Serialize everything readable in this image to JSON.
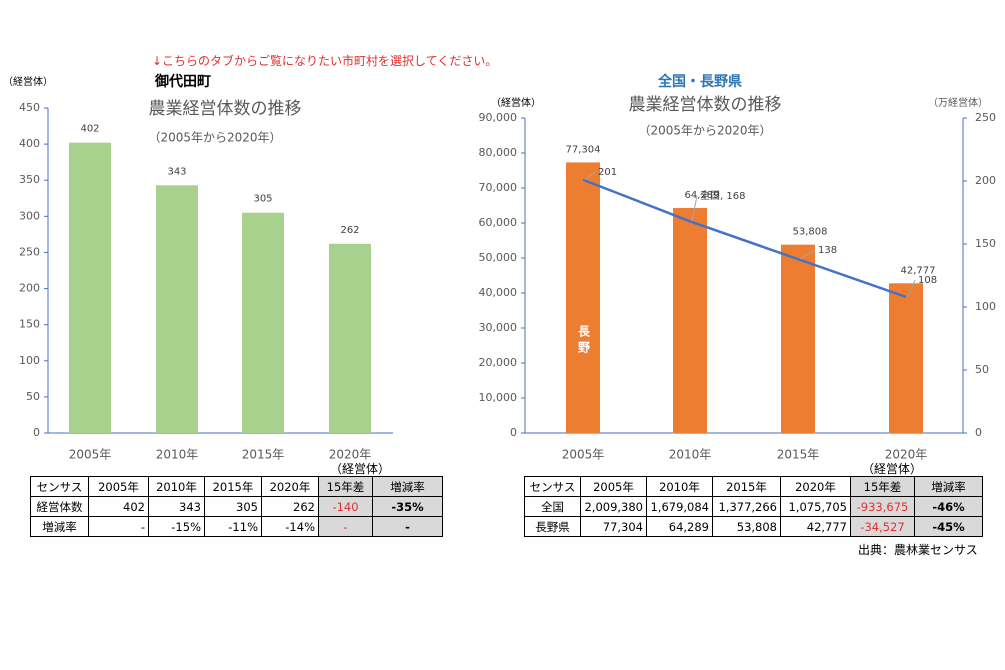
{
  "note": "↓こちらのタブからご覧になりたい市町村を選択してください。",
  "chart_data": [
    {
      "type": "bar",
      "header": "御代田町",
      "title": "農業経営体数の推移",
      "subtitle": "（2005年から2020年）",
      "y_label": "（経営体）",
      "categories": [
        "2005年",
        "2010年",
        "2015年",
        "2020年"
      ],
      "values": [
        402,
        343,
        305,
        262
      ],
      "color": "#a9d18e",
      "ylim": [
        0,
        450
      ],
      "yticks": [
        0,
        50,
        100,
        150,
        200,
        250,
        300,
        350,
        400,
        450
      ]
    },
    {
      "type": "combo",
      "header": "全国・長野県",
      "title": "農業経営体数の推移",
      "subtitle": "（2005年から2020年）",
      "y_label": "（経営体）",
      "y2_label": "（万経営体）",
      "categories": [
        "2005年",
        "2010年",
        "2015年",
        "2020年"
      ],
      "series": [
        {
          "name": "長野",
          "type": "bar",
          "color": "#ed7d31",
          "values": [
            77304,
            64289,
            53808,
            42777
          ],
          "value_labels": [
            "77,304",
            "64,289",
            "53,808",
            "42,777"
          ]
        },
        {
          "name": "全国",
          "type": "line",
          "axis": "y2",
          "color": "#4472c4",
          "values": [
            201,
            168,
            138,
            108
          ],
          "value_labels": [
            "201",
            "全国, 168",
            "138",
            "108"
          ]
        }
      ],
      "ylim": [
        0,
        90000
      ],
      "yticks": [
        0,
        {
          "value": 10000,
          "label": "10,000"
        },
        {
          "value": 20000,
          "label": "20,000"
        },
        {
          "value": 30000,
          "label": "30,000"
        },
        {
          "value": 40000,
          "label": "40,000"
        },
        {
          "value": 50000,
          "label": "50,000"
        },
        {
          "value": 60000,
          "label": "60,000"
        },
        {
          "value": 70000,
          "label": "70,000"
        },
        {
          "value": 80000,
          "label": "80,000"
        },
        {
          "value": 90000,
          "label": "90,000"
        }
      ],
      "y2lim": [
        0,
        250
      ],
      "y2ticks": [
        0,
        50,
        100,
        150,
        200,
        250
      ]
    }
  ],
  "tables": [
    {
      "unit": "（経営体）",
      "header": [
        "センサス",
        "2005年",
        "2010年",
        "2015年",
        "2020年",
        "15年差",
        "増減率"
      ],
      "rows": [
        [
          "経営体数",
          "402",
          "343",
          "305",
          "262",
          "-140",
          "-35%"
        ],
        [
          "増減率",
          "-",
          "-15%",
          "-11%",
          "-14%",
          "-",
          "-"
        ]
      ]
    },
    {
      "unit": "（経営体）",
      "header": [
        "センサス",
        "2005年",
        "2010年",
        "2015年",
        "2020年",
        "15年差",
        "増減率"
      ],
      "rows": [
        [
          "全国",
          "2,009,380",
          "1,679,084",
          "1,377,266",
          "1,075,705",
          "-933,675",
          "-46%"
        ],
        [
          "長野県",
          "77,304",
          "64,289",
          "53,808",
          "42,777",
          "-34,527",
          "-45%"
        ]
      ]
    }
  ],
  "source": "出典：農林業センサス"
}
